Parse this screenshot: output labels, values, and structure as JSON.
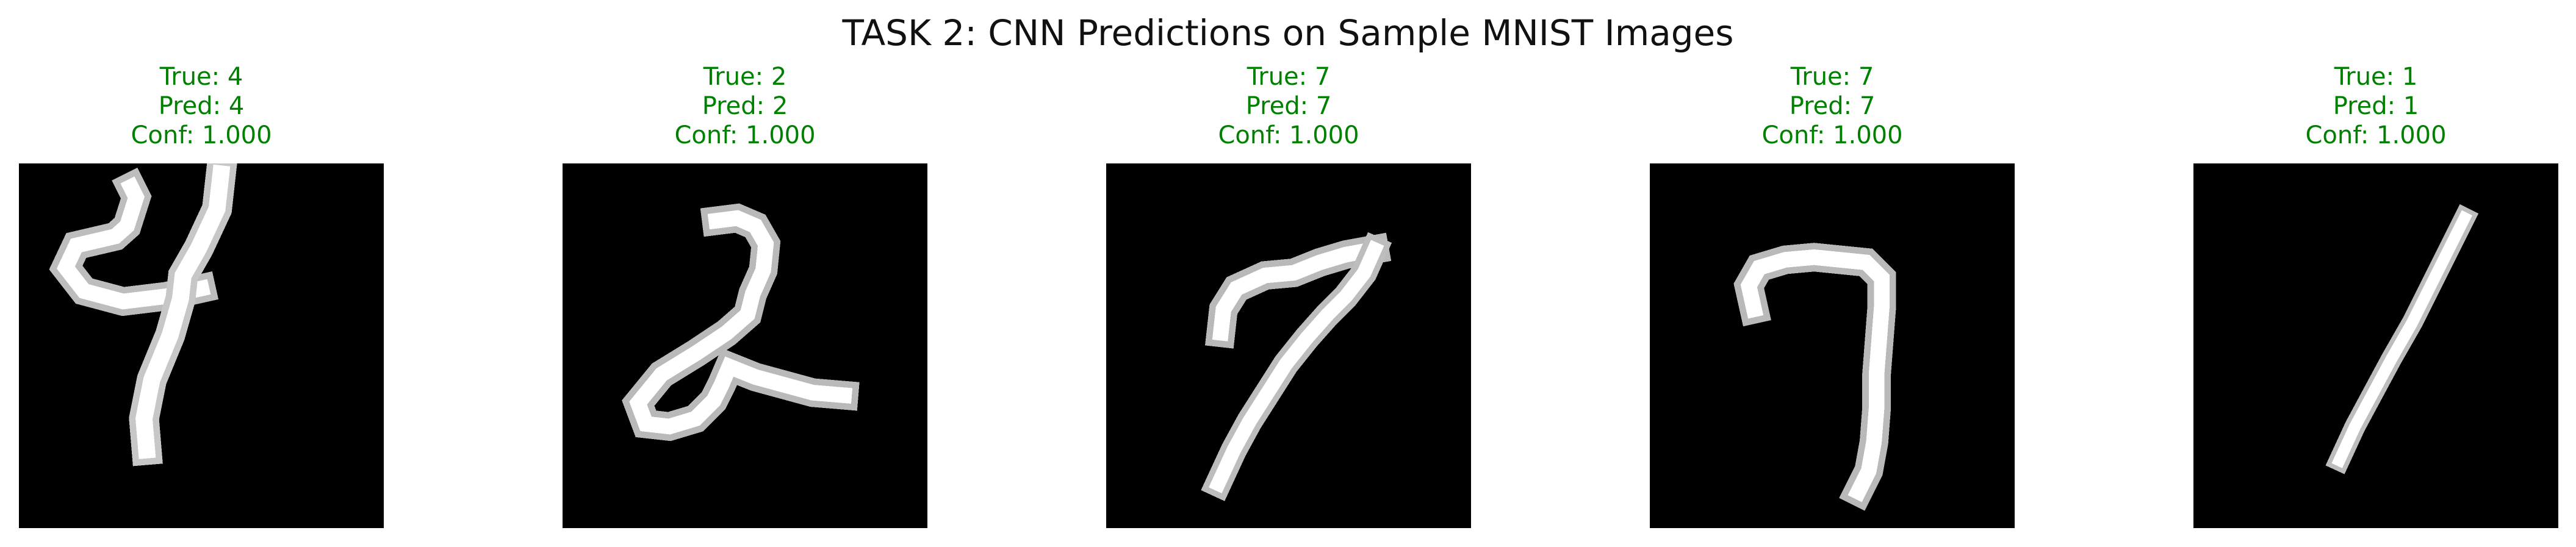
{
  "figure": {
    "title": "TASK 2: CNN Predictions on Sample MNIST Images"
  },
  "colors": {
    "correct_text": "#008000",
    "title_text": "#111111",
    "image_background": "#000000"
  },
  "panels": [
    {
      "true_text": "True: 4",
      "pred_text": "Pred: 4",
      "conf_text": "Conf: 1.000",
      "digit": "4"
    },
    {
      "true_text": "True: 2",
      "pred_text": "Pred: 2",
      "conf_text": "Conf: 1.000",
      "digit": "2"
    },
    {
      "true_text": "True: 7",
      "pred_text": "Pred: 7",
      "conf_text": "Conf: 1.000",
      "digit": "7"
    },
    {
      "true_text": "True: 7",
      "pred_text": "Pred: 7",
      "conf_text": "Conf: 1.000",
      "digit": "7"
    },
    {
      "true_text": "True: 1",
      "pred_text": "Pred: 1",
      "conf_text": "Conf: 1.000",
      "digit": "1"
    }
  ]
}
